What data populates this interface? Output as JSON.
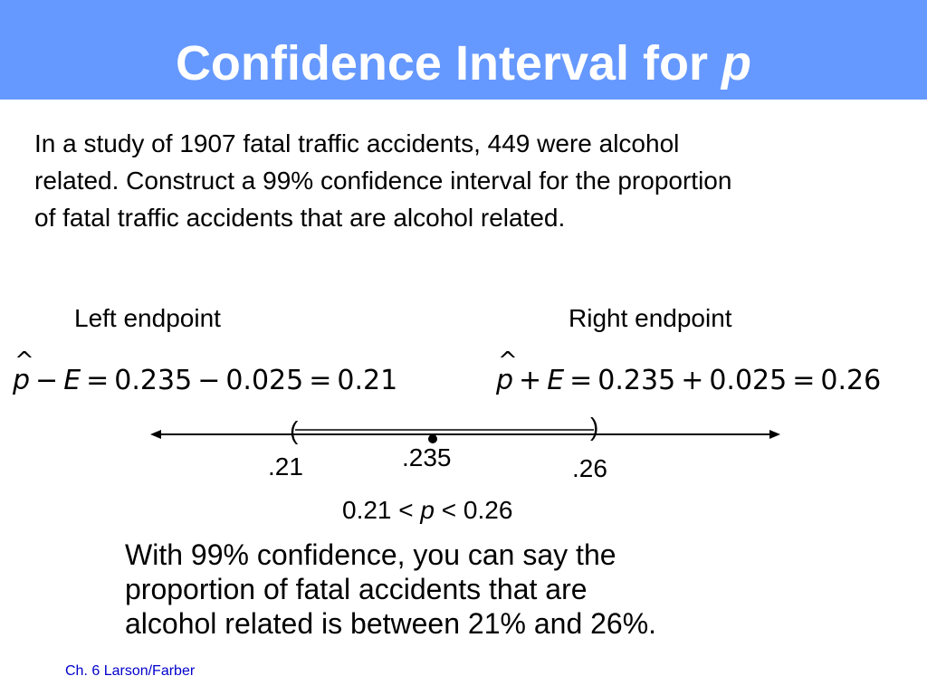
{
  "header": {
    "title_main": "Confidence Interval for",
    "title_var": "p",
    "bg_color": "#6699ff"
  },
  "problem": {
    "lines": [
      "In a study of 1907 fatal traffic accidents, 449 were alcohol",
      "related. Construct a 99% confidence interval for the proportion",
      "of fatal traffic accidents that are alcohol related."
    ]
  },
  "left": {
    "label": "Left endpoint",
    "p_symbol": "p",
    "hat": "^",
    "op": "−",
    "E": "E",
    "eq1": "=",
    "phat_val": "0.235",
    "op2": "−",
    "E_val": "0.025",
    "eq2": "=",
    "result": "0.21"
  },
  "right": {
    "label": "Right endpoint",
    "p_symbol": "p",
    "hat": "^",
    "op": "+",
    "E": "E",
    "eq1": "=",
    "phat_val": "0.235",
    "op2": "+",
    "E_val": "0.025",
    "eq2": "=",
    "result": "0.26"
  },
  "number_line": {
    "left_paren": "(",
    "right_paren": ")",
    "left_label": ".21",
    "center_label": ".235",
    "right_label": ".26",
    "left_value": 0.21,
    "center_value": 0.235,
    "right_value": 0.26
  },
  "inequality": {
    "left": "0.21 <",
    "var": "p",
    "right": "< 0.26"
  },
  "conclusion": {
    "lines": [
      "With 99% confidence, you can say the",
      "proportion of fatal accidents that are",
      "alcohol related is between 21% and 26%."
    ]
  },
  "footer": {
    "text": "Ch. 6 Larson/Farber",
    "color": "#0000cc"
  }
}
